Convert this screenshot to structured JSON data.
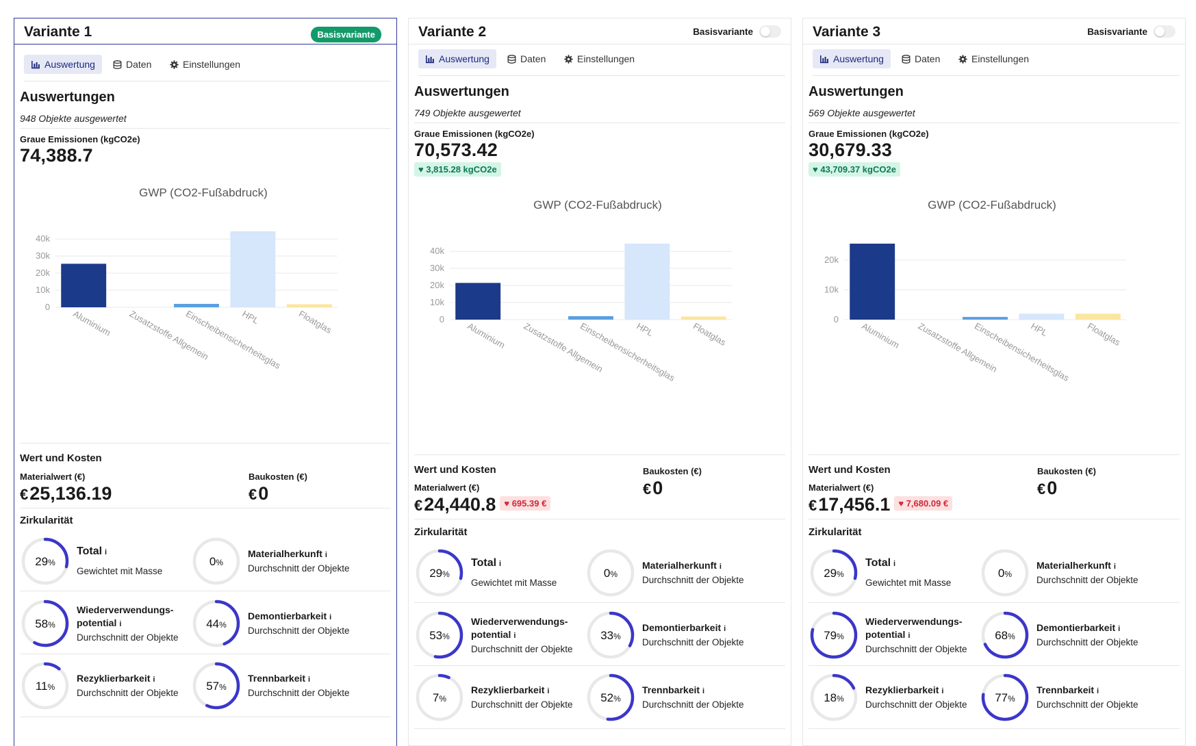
{
  "variants": [
    {
      "title": "Variante 1",
      "is_base": true,
      "basis_label": "Basisvariante",
      "tabs": [
        "Auswertung",
        "Daten",
        "Einstellungen"
      ],
      "section_title": "Auswertungen",
      "objects_text": "948 Objekte ausgewertet",
      "emissions_label": "Graue Emissionen (kgCO2e)",
      "emissions_value": "74,388.7",
      "emissions_delta": null,
      "value_section_title": "Wert und Kosten",
      "materialwert_label": "Materialwert (€)",
      "materialwert_value": "25,136.19",
      "materialwert_delta": null,
      "baukosten_label": "Baukosten (€)",
      "baukosten_value": "0",
      "currency": "€",
      "circ_section_title": "Zirkularität",
      "circularity": [
        {
          "title": "Total",
          "sub": "Gewichtet mit Masse",
          "value": 29
        },
        {
          "title": "Materialherkunft",
          "sub": "Durchschnitt der Objekte",
          "value": 0
        },
        {
          "title": "Wiederverwendungs-",
          "title2": "potential",
          "sub": "Durchschnitt der Objekte",
          "value": 58
        },
        {
          "title": "Demontierbarkeit",
          "sub": "Durchschnitt der Objekte",
          "value": 44
        },
        {
          "title": "Rezyklierbarkeit",
          "sub": "Durchschnitt der Objekte",
          "value": 11
        },
        {
          "title": "Trennbarkeit",
          "sub": "Durchschnitt der Objekte",
          "value": 57
        }
      ],
      "chart_data": {
        "type": "bar",
        "title": "GWP (CO2-Fußabdruck)",
        "categories": [
          "Aluminium",
          "Zusatzstoffe Allgemein",
          "Einscheibensicherheitsglas",
          "HPL",
          "Floatglas"
        ],
        "values": [
          25500,
          0,
          2000,
          44500,
          1800
        ],
        "bar_colors": [
          "#1c3a8a",
          "#1c3a8a",
          "#5aa0e0",
          "#d6e6fb",
          "#fbe6a0"
        ],
        "yticks": [
          0,
          10000,
          20000,
          30000,
          40000
        ],
        "ytick_labels": [
          "0",
          "10k",
          "20k",
          "30k",
          "40k"
        ],
        "ylim": [
          0,
          44500
        ]
      }
    },
    {
      "title": "Variante 2",
      "is_base": false,
      "basis_label": "Basisvariante",
      "tabs": [
        "Auswertung",
        "Daten",
        "Einstellungen"
      ],
      "section_title": "Auswertungen",
      "objects_text": "749 Objekte ausgewertet",
      "emissions_label": "Graue Emissionen (kgCO2e)",
      "emissions_value": "70,573.42",
      "emissions_delta": "3,815.28 kgCO2e",
      "value_section_title": "Wert und Kosten",
      "materialwert_label": "Materialwert (€)",
      "materialwert_value": "24,440.8",
      "materialwert_delta": "695.39 €",
      "baukosten_label": "Baukosten (€)",
      "baukosten_value": "0",
      "currency": "€",
      "circ_section_title": "Zirkularität",
      "circularity": [
        {
          "title": "Total",
          "sub": "Gewichtet mit Masse",
          "value": 29
        },
        {
          "title": "Materialherkunft",
          "sub": "Durchschnitt der Objekte",
          "value": 0
        },
        {
          "title": "Wiederverwendungs-",
          "title2": "potential",
          "sub": "Durchschnitt der Objekte",
          "value": 53
        },
        {
          "title": "Demontierbarkeit",
          "sub": "Durchschnitt der Objekte",
          "value": 33
        },
        {
          "title": "Rezyklierbarkeit",
          "sub": "Durchschnitt der Objekte",
          "value": 7
        },
        {
          "title": "Trennbarkeit",
          "sub": "Durchschnitt der Objekte",
          "value": 52
        }
      ],
      "chart_data": {
        "type": "bar",
        "title": "GWP (CO2-Fußabdruck)",
        "categories": [
          "Aluminium",
          "Zusatzstoffe Allgemein",
          "Einscheibensicherheitsglas",
          "HPL",
          "Floatglas"
        ],
        "values": [
          21500,
          0,
          2000,
          44500,
          1800
        ],
        "bar_colors": [
          "#1c3a8a",
          "#1c3a8a",
          "#5aa0e0",
          "#d6e6fb",
          "#fbe6a0"
        ],
        "yticks": [
          0,
          10000,
          20000,
          30000,
          40000
        ],
        "ytick_labels": [
          "0",
          "10k",
          "20k",
          "30k",
          "40k"
        ],
        "ylim": [
          0,
          44500
        ]
      }
    },
    {
      "title": "Variante 3",
      "is_base": false,
      "basis_label": "Basisvariante",
      "tabs": [
        "Auswertung",
        "Daten",
        "Einstellungen"
      ],
      "section_title": "Auswertungen",
      "objects_text": "569 Objekte ausgewertet",
      "emissions_label": "Graue Emissionen (kgCO2e)",
      "emissions_value": "30,679.33",
      "emissions_delta": "43,709.37 kgCO2e",
      "value_section_title": "Wert und Kosten",
      "materialwert_label": "Materialwert (€)",
      "materialwert_value": "17,456.1",
      "materialwert_delta": "7,680.09 €",
      "baukosten_label": "Baukosten (€)",
      "baukosten_value": "0",
      "currency": "€",
      "circ_section_title": "Zirkularität",
      "circularity": [
        {
          "title": "Total",
          "sub": "Gewichtet mit Masse",
          "value": 29
        },
        {
          "title": "Materialherkunft",
          "sub": "Durchschnitt der Objekte",
          "value": 0
        },
        {
          "title": "Wiederverwendungs-",
          "title2": "potential",
          "sub": "Durchschnitt der Objekte",
          "value": 79
        },
        {
          "title": "Demontierbarkeit",
          "sub": "Durchschnitt der Objekte",
          "value": 68
        },
        {
          "title": "Rezyklierbarkeit",
          "sub": "Durchschnitt der Objekte",
          "value": 18
        },
        {
          "title": "Trennbarkeit",
          "sub": "Durchschnitt der Objekte",
          "value": 77
        }
      ],
      "chart_data": {
        "type": "bar",
        "title": "GWP (CO2-Fußabdruck)",
        "categories": [
          "Aluminium",
          "Zusatzstoffe Allgemein",
          "Einscheibensicherheitsglas",
          "HPL",
          "Floatglas"
        ],
        "values": [
          25500,
          0,
          900,
          2000,
          2000
        ],
        "bar_colors": [
          "#1c3a8a",
          "#1c3a8a",
          "#5aa0e0",
          "#d6e6fb",
          "#fbe6a0"
        ],
        "yticks": [
          0,
          10000,
          20000
        ],
        "ytick_labels": [
          "0",
          "10k",
          "20k"
        ],
        "ylim": [
          0,
          25500
        ]
      }
    }
  ],
  "colors": {
    "accent": "#3b37c9",
    "ring_bg": "#e8e8e8",
    "basis_green": "#139a6b",
    "selected_border": "#2c3a96"
  }
}
